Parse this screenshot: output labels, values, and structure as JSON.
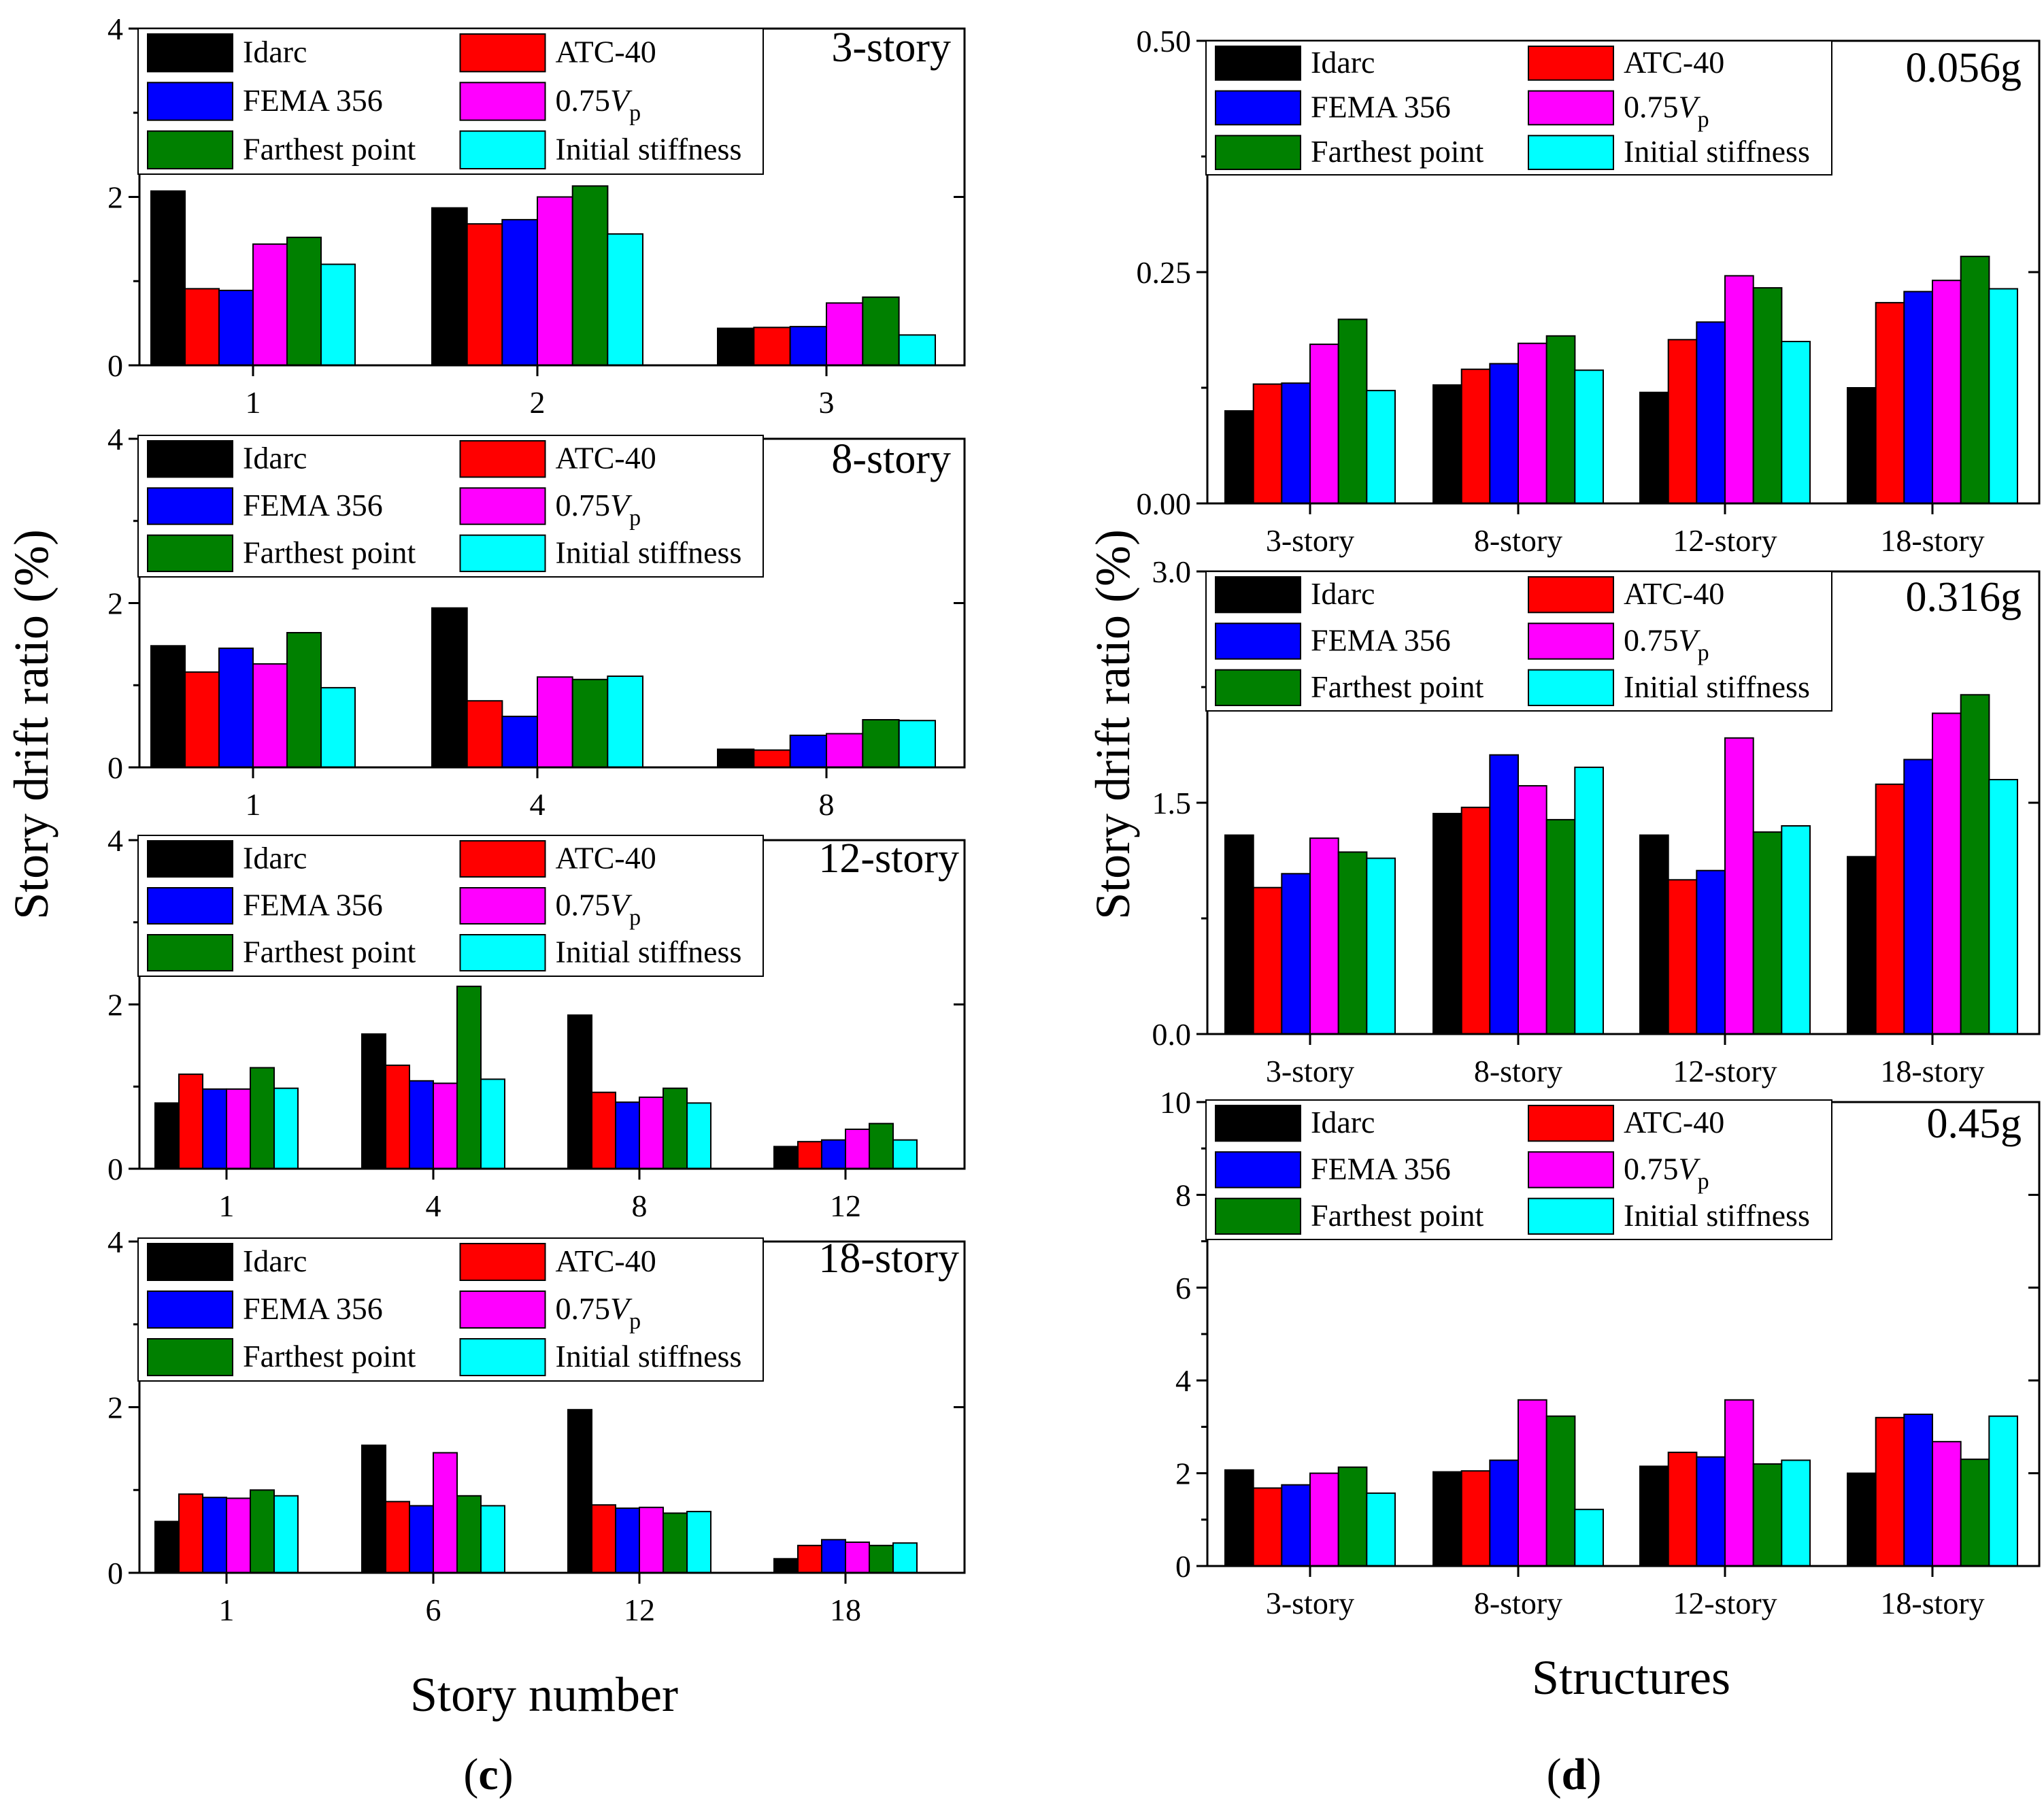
{
  "panels": {
    "c": {
      "label_open": "(",
      "label_letter": "c",
      "label_close": ")",
      "xlabel": "Story number"
    },
    "d": {
      "label_open": "(",
      "label_letter": "d",
      "label_close": ")",
      "xlabel": "Structures"
    }
  },
  "shared_ylabel": "Story drift ratio (%)",
  "legend": {
    "items": [
      {
        "label": "Idarc",
        "color": "#000000"
      },
      {
        "label": "ATC-40",
        "color": "#ff0000"
      },
      {
        "label": "FEMA 356",
        "color": "#0000ff"
      },
      {
        "label": "0.75",
        "label_italic": "V",
        "label_sub": "p",
        "color": "#ff00ff"
      },
      {
        "label": "Farthest point",
        "color": "#008000"
      },
      {
        "label": "Initial stiffness",
        "color": "#00ffff"
      }
    ]
  },
  "chart_data": [
    {
      "type": "bar",
      "panel": "c",
      "title": "3-story",
      "categories": [
        "1",
        "2",
        "3"
      ],
      "ylim": [
        0,
        4
      ],
      "yticks": [
        "0",
        "2",
        "4"
      ],
      "series": [
        {
          "name": "Idarc",
          "values": [
            2.07,
            1.87,
            0.44
          ]
        },
        {
          "name": "ATC-40",
          "values": [
            0.91,
            1.68,
            0.45
          ]
        },
        {
          "name": "FEMA 356",
          "values": [
            0.89,
            1.73,
            0.46
          ]
        },
        {
          "name": "0.75Vp",
          "values": [
            1.44,
            2.0,
            0.74
          ]
        },
        {
          "name": "Farthest point",
          "values": [
            1.52,
            2.13,
            0.81
          ]
        },
        {
          "name": "Initial stiffness",
          "values": [
            1.2,
            1.56,
            0.36
          ]
        }
      ]
    },
    {
      "type": "bar",
      "panel": "c",
      "title": "8-story",
      "categories": [
        "1",
        "4",
        "8"
      ],
      "ylim": [
        0,
        4
      ],
      "yticks": [
        "0",
        "2",
        "4"
      ],
      "series": [
        {
          "name": "Idarc",
          "values": [
            1.48,
            1.94,
            0.22
          ]
        },
        {
          "name": "ATC-40",
          "values": [
            1.16,
            0.81,
            0.21
          ]
        },
        {
          "name": "FEMA 356",
          "values": [
            1.45,
            0.62,
            0.39
          ]
        },
        {
          "name": "0.75Vp",
          "values": [
            1.26,
            1.1,
            0.41
          ]
        },
        {
          "name": "Farthest point",
          "values": [
            1.64,
            1.07,
            0.58
          ]
        },
        {
          "name": "Initial stiffness",
          "values": [
            0.97,
            1.11,
            0.57
          ]
        }
      ]
    },
    {
      "type": "bar",
      "panel": "c",
      "title": "12-story",
      "categories": [
        "1",
        "4",
        "8",
        "12"
      ],
      "ylim": [
        0,
        4
      ],
      "yticks": [
        "0",
        "2",
        "4"
      ],
      "series": [
        {
          "name": "Idarc",
          "values": [
            0.8,
            1.64,
            1.87,
            0.27
          ]
        },
        {
          "name": "ATC-40",
          "values": [
            1.15,
            1.26,
            0.93,
            0.33
          ]
        },
        {
          "name": "FEMA 356",
          "values": [
            0.97,
            1.07,
            0.81,
            0.35
          ]
        },
        {
          "name": "0.75Vp",
          "values": [
            0.97,
            1.04,
            0.87,
            0.48
          ]
        },
        {
          "name": "Farthest point",
          "values": [
            1.23,
            2.22,
            0.98,
            0.55
          ]
        },
        {
          "name": "Initial stiffness",
          "values": [
            0.98,
            1.09,
            0.8,
            0.35
          ]
        }
      ]
    },
    {
      "type": "bar",
      "panel": "c",
      "title": "18-story",
      "categories": [
        "1",
        "6",
        "12",
        "18"
      ],
      "ylim": [
        0,
        4
      ],
      "yticks": [
        "0",
        "2",
        "4"
      ],
      "series": [
        {
          "name": "Idarc",
          "values": [
            0.62,
            1.54,
            1.97,
            0.17
          ]
        },
        {
          "name": "ATC-40",
          "values": [
            0.95,
            0.86,
            0.82,
            0.33
          ]
        },
        {
          "name": "FEMA 356",
          "values": [
            0.91,
            0.81,
            0.78,
            0.4
          ]
        },
        {
          "name": "0.75Vp",
          "values": [
            0.9,
            1.45,
            0.79,
            0.37
          ]
        },
        {
          "name": "Farthest point",
          "values": [
            1.0,
            0.93,
            0.72,
            0.33
          ]
        },
        {
          "name": "Initial stiffness",
          "values": [
            0.93,
            0.81,
            0.74,
            0.36
          ]
        }
      ]
    },
    {
      "type": "bar",
      "panel": "d",
      "title": "0.056g",
      "categories": [
        "3-story",
        "8-story",
        "12-story",
        "18-story"
      ],
      "ylim": [
        0,
        0.5
      ],
      "yticks": [
        "0.00",
        "0.25",
        "0.50"
      ],
      "series": [
        {
          "name": "Idarc",
          "values": [
            0.1,
            0.128,
            0.12,
            0.125
          ]
        },
        {
          "name": "ATC-40",
          "values": [
            0.129,
            0.145,
            0.177,
            0.217
          ]
        },
        {
          "name": "FEMA 356",
          "values": [
            0.13,
            0.151,
            0.196,
            0.229
          ]
        },
        {
          "name": "0.75Vp",
          "values": [
            0.172,
            0.173,
            0.246,
            0.241
          ]
        },
        {
          "name": "Farthest point",
          "values": [
            0.199,
            0.181,
            0.233,
            0.267
          ]
        },
        {
          "name": "Initial stiffness",
          "values": [
            0.122,
            0.144,
            0.175,
            0.232
          ]
        }
      ]
    },
    {
      "type": "bar",
      "panel": "d",
      "title": "0.316g",
      "categories": [
        "3-story",
        "8-story",
        "12-story",
        "18-story"
      ],
      "ylim": [
        0,
        3
      ],
      "yticks": [
        "0.0",
        "1.5",
        "3.0"
      ],
      "series": [
        {
          "name": "Idarc",
          "values": [
            1.29,
            1.43,
            1.29,
            1.15
          ]
        },
        {
          "name": "ATC-40",
          "values": [
            0.95,
            1.47,
            1.0,
            1.62
          ]
        },
        {
          "name": "FEMA 356",
          "values": [
            1.04,
            1.81,
            1.06,
            1.78
          ]
        },
        {
          "name": "0.75Vp",
          "values": [
            1.27,
            1.61,
            1.92,
            2.08
          ]
        },
        {
          "name": "Farthest point",
          "values": [
            1.18,
            1.39,
            1.31,
            2.2
          ]
        },
        {
          "name": "Initial stiffness",
          "values": [
            1.14,
            1.73,
            1.35,
            1.65
          ]
        }
      ]
    },
    {
      "type": "bar",
      "panel": "d",
      "title": "0.45g",
      "categories": [
        "3-story",
        "8-story",
        "12-story",
        "18-story"
      ],
      "ylim": [
        0,
        10
      ],
      "yticks": [
        "0",
        "2",
        "4",
        "6",
        "8",
        "10"
      ],
      "series": [
        {
          "name": "Idarc",
          "values": [
            2.07,
            2.03,
            2.15,
            2.0
          ]
        },
        {
          "name": "ATC-40",
          "values": [
            1.68,
            2.05,
            2.45,
            3.2
          ]
        },
        {
          "name": "FEMA 356",
          "values": [
            1.75,
            2.28,
            2.35,
            3.27
          ]
        },
        {
          "name": "0.75Vp",
          "values": [
            2.0,
            3.58,
            3.58,
            2.68
          ]
        },
        {
          "name": "Farthest point",
          "values": [
            2.13,
            3.23,
            2.2,
            2.3
          ]
        },
        {
          "name": "Initial stiffness",
          "values": [
            1.57,
            1.22,
            2.28,
            3.23
          ]
        }
      ]
    }
  ]
}
